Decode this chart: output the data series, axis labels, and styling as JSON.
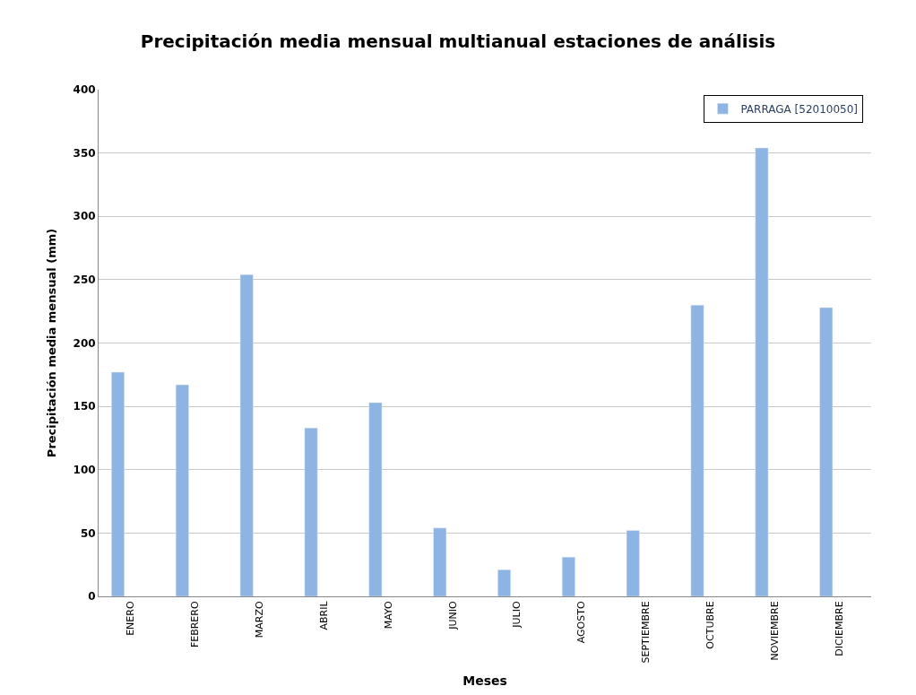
{
  "chart_data": {
    "type": "bar",
    "title": "Precipitación media mensual multianual estaciones de análisis",
    "xlabel": "Meses",
    "ylabel": "Precipitación media mensual (mm)",
    "categories": [
      "ENERO",
      "FEBRERO",
      "MARZO",
      "ABRIL",
      "MAYO",
      "JUNIO",
      "JULIO",
      "AGOSTO",
      "SEPTIEMBRE",
      "OCTUBRE",
      "NOVIEMBRE",
      "DICIEMBRE"
    ],
    "series": [
      {
        "name": "PARRAGA [52010050]",
        "color": "#8eb4e3",
        "values": [
          177,
          167,
          254,
          133,
          153,
          54,
          21,
          31,
          52,
          230,
          354,
          228
        ]
      }
    ],
    "ylim": [
      0,
      400
    ],
    "yticks": [
      0,
      50,
      100,
      150,
      200,
      250,
      300,
      350,
      400
    ],
    "grid": "y",
    "legend": "top right"
  }
}
